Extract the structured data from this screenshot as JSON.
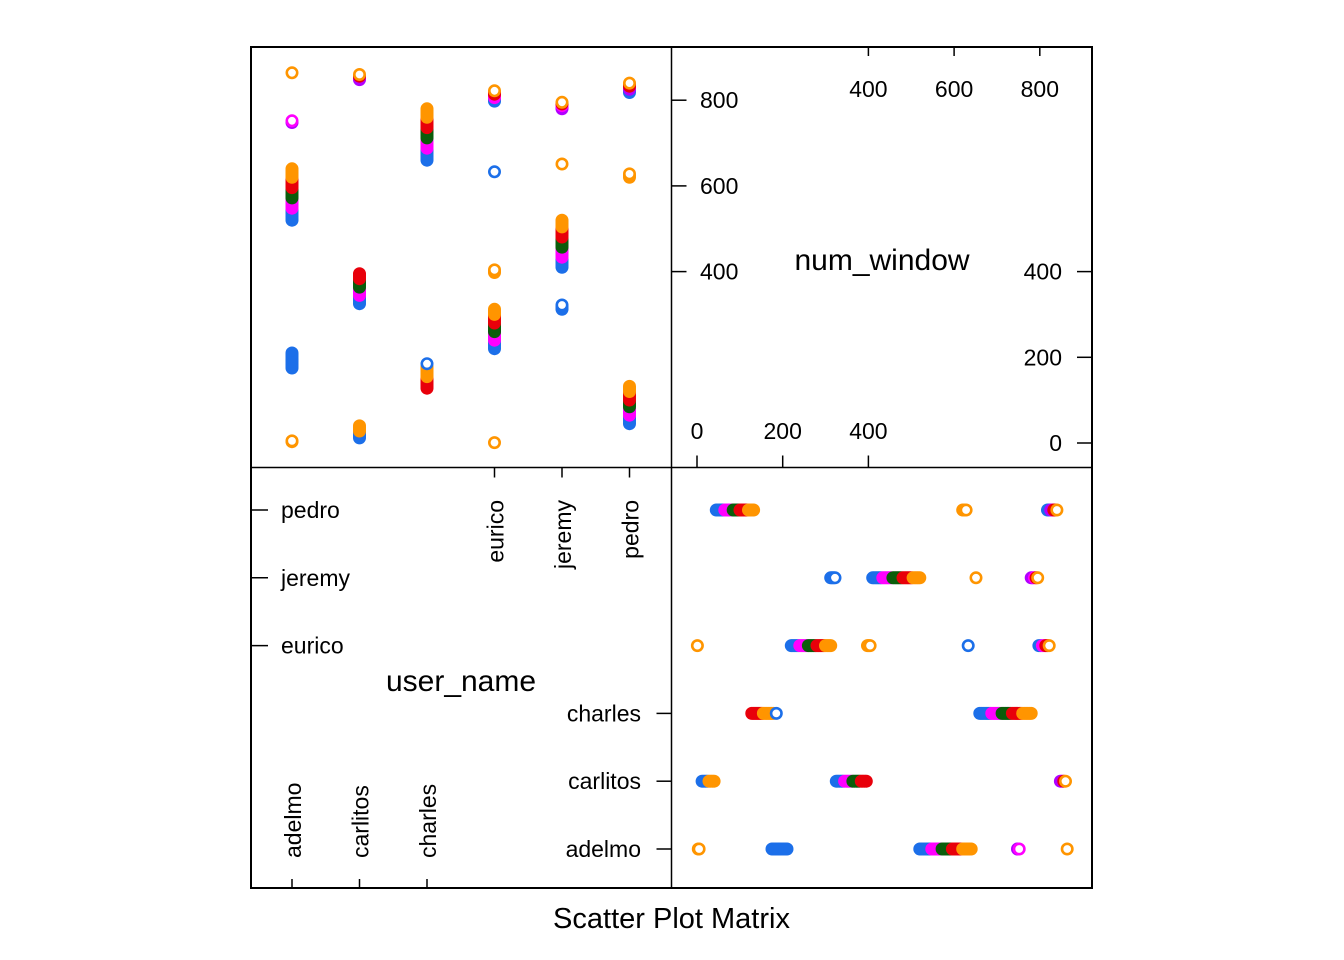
{
  "chart_data": {
    "type": "scatter",
    "title": "",
    "subtitle": "Scatter Plot Matrix",
    "variables": [
      "user_name",
      "num_window"
    ],
    "user_name_levels": [
      "adelmo",
      "carlitos",
      "charles",
      "eurico",
      "jeremy",
      "pedro"
    ],
    "num_window_range": [
      0,
      864
    ],
    "num_window_ticks": {
      "top_axis": [
        400,
        600,
        800
      ],
      "left_axis": [
        400,
        600,
        800
      ],
      "right_axis": [
        0,
        200,
        400
      ],
      "bottom_axis": [
        0,
        200,
        400
      ]
    },
    "grid": false,
    "legend": "none",
    "colors": {
      "blue": "#1c6fe9",
      "magenta": "#ff00ff",
      "darkgreen": "#0b5d0b",
      "red": "#e8000b",
      "orange": "#ff9500",
      "purple": "#b000ff"
    },
    "color_order": [
      "blue",
      "magenta",
      "darkgreen",
      "red",
      "orange"
    ],
    "point_groups": [
      {
        "user_name": "adelmo",
        "filled": false,
        "colors": [
          "orange"
        ],
        "num_window": [
          3,
          5
        ]
      },
      {
        "user_name": "adelmo",
        "filled": true,
        "colors": [
          "blue"
        ],
        "num_window": [
          175,
          210
        ]
      },
      {
        "user_name": "adelmo",
        "filled": true,
        "colors": [
          "blue",
          "magenta",
          "darkgreen",
          "red",
          "orange"
        ],
        "num_window": [
          520,
          640
        ]
      },
      {
        "user_name": "adelmo",
        "filled": false,
        "colors": [
          "purple",
          "magenta"
        ],
        "num_window": [
          748,
          752
        ]
      },
      {
        "user_name": "adelmo",
        "filled": false,
        "colors": [
          "orange"
        ],
        "num_window": [
          864,
          864
        ]
      },
      {
        "user_name": "carlitos",
        "filled": true,
        "colors": [
          "blue",
          "orange"
        ],
        "num_window": [
          12,
          40
        ]
      },
      {
        "user_name": "carlitos",
        "filled": true,
        "colors": [
          "blue",
          "magenta",
          "darkgreen",
          "red"
        ],
        "num_window": [
          325,
          395
        ]
      },
      {
        "user_name": "carlitos",
        "filled": false,
        "colors": [
          "purple",
          "red",
          "orange"
        ],
        "num_window": [
          848,
          860
        ]
      },
      {
        "user_name": "charles",
        "filled": true,
        "colors": [
          "red",
          "orange"
        ],
        "num_window": [
          128,
          178
        ]
      },
      {
        "user_name": "charles",
        "filled": false,
        "colors": [
          "blue"
        ],
        "num_window": [
          185,
          185
        ]
      },
      {
        "user_name": "charles",
        "filled": true,
        "colors": [
          "blue",
          "magenta",
          "darkgreen",
          "red",
          "orange"
        ],
        "num_window": [
          660,
          780
        ]
      },
      {
        "user_name": "eurico",
        "filled": false,
        "colors": [
          "orange"
        ],
        "num_window": [
          1,
          1
        ]
      },
      {
        "user_name": "eurico",
        "filled": true,
        "colors": [
          "blue",
          "magenta",
          "darkgreen",
          "red",
          "orange"
        ],
        "num_window": [
          220,
          312
        ]
      },
      {
        "user_name": "eurico",
        "filled": false,
        "colors": [
          "orange"
        ],
        "num_window": [
          398,
          404
        ]
      },
      {
        "user_name": "eurico",
        "filled": false,
        "colors": [
          "blue"
        ],
        "num_window": [
          633,
          633
        ]
      },
      {
        "user_name": "eurico",
        "filled": false,
        "colors": [
          "blue",
          "magenta",
          "red",
          "orange"
        ],
        "num_window": [
          798,
          822
        ]
      },
      {
        "user_name": "jeremy",
        "filled": false,
        "colors": [
          "blue"
        ],
        "num_window": [
          312,
          322
        ]
      },
      {
        "user_name": "jeremy",
        "filled": true,
        "colors": [
          "blue",
          "magenta",
          "darkgreen",
          "red",
          "orange"
        ],
        "num_window": [
          410,
          520
        ]
      },
      {
        "user_name": "jeremy",
        "filled": false,
        "colors": [
          "orange"
        ],
        "num_window": [
          651,
          651
        ]
      },
      {
        "user_name": "jeremy",
        "filled": false,
        "colors": [
          "purple",
          "magenta",
          "red",
          "orange"
        ],
        "num_window": [
          780,
          795
        ]
      },
      {
        "user_name": "pedro",
        "filled": true,
        "colors": [
          "blue",
          "magenta",
          "darkgreen",
          "red",
          "orange"
        ],
        "num_window": [
          45,
          132
        ]
      },
      {
        "user_name": "pedro",
        "filled": false,
        "colors": [
          "orange"
        ],
        "num_window": [
          620,
          628
        ]
      },
      {
        "user_name": "pedro",
        "filled": false,
        "colors": [
          "blue",
          "purple",
          "red",
          "orange"
        ],
        "num_window": [
          818,
          840
        ]
      }
    ]
  }
}
